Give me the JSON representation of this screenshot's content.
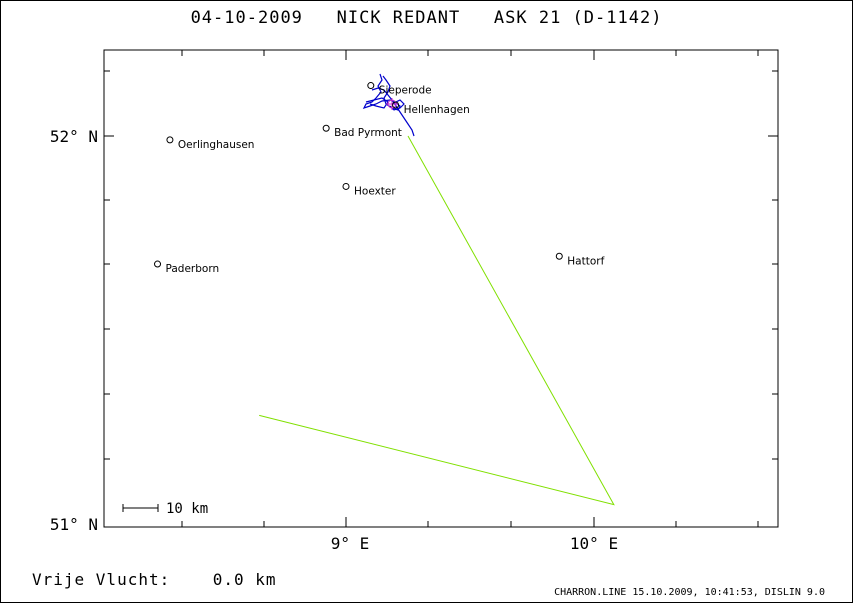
{
  "title": "04-10-2009   NICK REDANT   ASK 21 (D-1142)",
  "axes": {
    "y_labels": [
      "52° N",
      "51° N"
    ],
    "x_labels": [
      "9° E",
      "10° E"
    ]
  },
  "scale_bar": {
    "label": "10 km"
  },
  "places": [
    {
      "name": "Sieperode",
      "lon": 9.1,
      "lat": 52.13
    },
    {
      "name": "Hellenhagen",
      "lon": 9.2,
      "lat": 52.08
    },
    {
      "name": "Bad Pyrmont",
      "lon": 8.92,
      "lat": 52.02
    },
    {
      "name": "Oerlinghausen",
      "lon": 8.29,
      "lat": 51.99
    },
    {
      "name": "Hoexter",
      "lon": 9.0,
      "lat": 51.87
    },
    {
      "name": "Paderborn",
      "lon": 8.24,
      "lat": 51.67
    },
    {
      "name": "Hattorf",
      "lon": 9.86,
      "lat": 51.69
    }
  ],
  "task_line": {
    "color": "#80e000",
    "points": [
      {
        "lon": 9.25,
        "lat": 52.0
      },
      {
        "lon": 10.08,
        "lat": 51.05
      },
      {
        "lon": 8.65,
        "lat": 51.28
      }
    ]
  },
  "flight_track": {
    "color": "#0000cc"
  },
  "footer": {
    "distance_text": "Vrije Vlucht:    0.0 km",
    "credit": "CHARRON.LINE 15.10.2009, 10:41:53, DISLIN 9.0"
  }
}
